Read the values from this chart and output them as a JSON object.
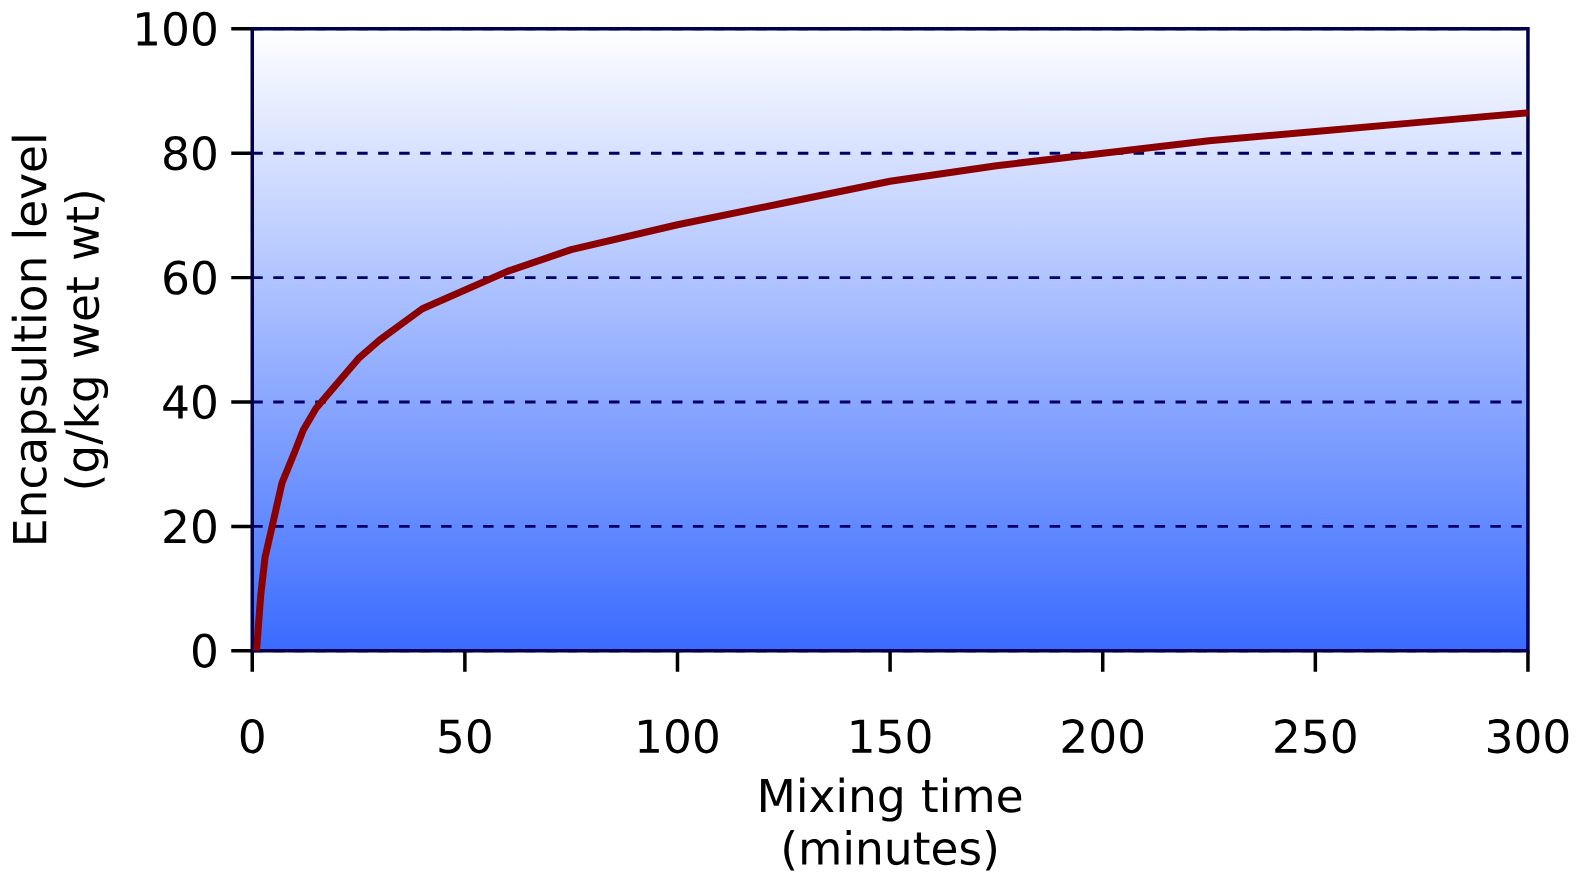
{
  "chart_data": {
    "type": "line",
    "xlabel": "Mixing time (minutes)",
    "ylabel": "Encapsultion level (g/kg wet wt)",
    "x": [
      1,
      2,
      3,
      4,
      5,
      7,
      10,
      12,
      15,
      20,
      25,
      30,
      35,
      40,
      50,
      60,
      75,
      100,
      125,
      150,
      175,
      200,
      225,
      250,
      275,
      300
    ],
    "series": [
      {
        "color": "#8b0000",
        "values": [
          0,
          9,
          15,
          18,
          21,
          27,
          32,
          35.5,
          39,
          43,
          47,
          50,
          52.5,
          55,
          58,
          61,
          64.5,
          68.5,
          72,
          75.5,
          78,
          80,
          82,
          83.5,
          85,
          86.5
        ]
      }
    ],
    "xlim": [
      0,
      300
    ],
    "ylim": [
      0,
      100
    ],
    "xticks": [
      0,
      50,
      100,
      150,
      200,
      250,
      300
    ],
    "yticks": [
      0,
      20,
      40,
      60,
      80,
      100
    ],
    "grid": "y",
    "marker": "none",
    "line_style": "solid"
  }
}
